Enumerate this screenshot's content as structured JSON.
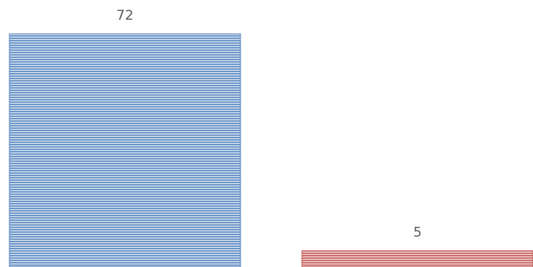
{
  "chart_data": {
    "type": "bar",
    "categories": [
      "",
      ""
    ],
    "values": [
      72,
      5
    ],
    "data_labels": [
      "72",
      "5"
    ],
    "colors": [
      "#4f81bd",
      "#c0504d"
    ],
    "bar_fill": "horizontal-stripes",
    "grid": false,
    "legend": "none",
    "title": "",
    "xlabel": "",
    "ylabel": ""
  }
}
